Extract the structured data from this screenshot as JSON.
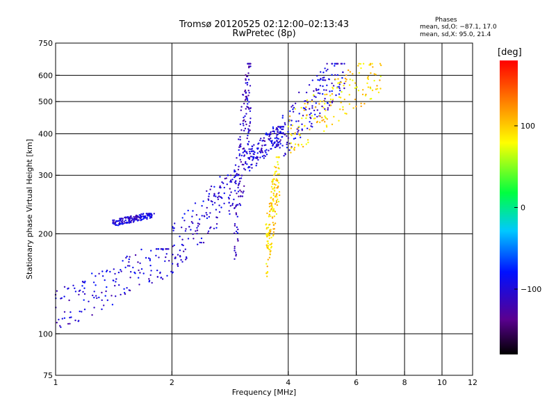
{
  "header": {
    "title_line1": "Tromsø 20120525 02:12:00–02:13:43",
    "title_line2": "RwPretec (8p)",
    "phases_heading": "Phases",
    "phases_o": "mean, sd,O: −87.1, 17.0",
    "phases_x": "mean, sd,X:  95.0, 21.4"
  },
  "colorbar": {
    "unit_label": "[deg]",
    "ticks": [
      "100",
      "0",
      "−100"
    ],
    "tick_values": [
      100,
      0,
      -100
    ],
    "range": [
      -180,
      180
    ]
  },
  "chart_data": {
    "type": "scatter",
    "xlabel": "Frequency [MHz]",
    "ylabel": "Stationary phase Virtual Height [km]",
    "x_scale": "log",
    "y_scale": "log",
    "xlim": [
      1,
      12
    ],
    "ylim": [
      75,
      750
    ],
    "x_ticks": [
      1,
      2,
      4,
      6,
      8,
      10,
      12
    ],
    "x_tick_labels": [
      "1",
      "2",
      "4",
      "6",
      "8",
      "10",
      "12"
    ],
    "y_ticks": [
      75,
      100,
      200,
      300,
      400,
      500,
      600,
      750
    ],
    "y_tick_labels": [
      "75",
      "100",
      "200",
      "300",
      "400",
      "500",
      "600",
      "750"
    ],
    "x_gridlines": [
      2,
      4,
      6,
      8,
      10
    ],
    "y_gridlines": [
      100,
      200,
      300,
      400,
      500,
      600
    ],
    "grid": true,
    "color_scale": "phase [deg], rainbow from black (−180) through blue, cyan, green, yellow to red (+180)",
    "traces": [
      {
        "name": "",
        "freq_range": [
          1.0,
          2.0
        ],
        "height_range": [
          100,
          180
        ],
        "phase": -100,
        "shape": "E-layer trace rising"
      },
      {
        "name": "",
        "freq_range": [
          2.0,
          3.0
        ],
        "height_range": [
          150,
          300
        ],
        "phase": -100
      },
      {
        "name": "",
        "freq_range": [
          2.9,
          3.2
        ],
        "height_range": [
          150,
          650
        ],
        "phase": -110
      },
      {
        "name": "",
        "freq_range": [
          3.1,
          3.9
        ],
        "height_range": [
          300,
          420
        ],
        "phase": -100,
        "shape": "F-layer O-mode"
      },
      {
        "name": "",
        "freq_range": [
          3.8,
          5.6
        ],
        "height_range": [
          330,
          650
        ],
        "phase": -100,
        "shape": "F-layer O-mode cusp"
      },
      {
        "name": "",
        "freq_range": [
          3.5,
          3.8
        ],
        "height_range": [
          140,
          340
        ],
        "phase": 95,
        "shape": "X-mode"
      },
      {
        "name": "",
        "freq_range": [
          4.0,
          7.0
        ],
        "height_range": [
          340,
          650
        ],
        "phase": 95,
        "shape": "F-layer X-mode"
      },
      {
        "name": "",
        "freq_range": [
          1.4,
          1.8
        ],
        "height_range": [
          210,
          230
        ],
        "phase": -100,
        "shape": "sporadic"
      }
    ]
  }
}
